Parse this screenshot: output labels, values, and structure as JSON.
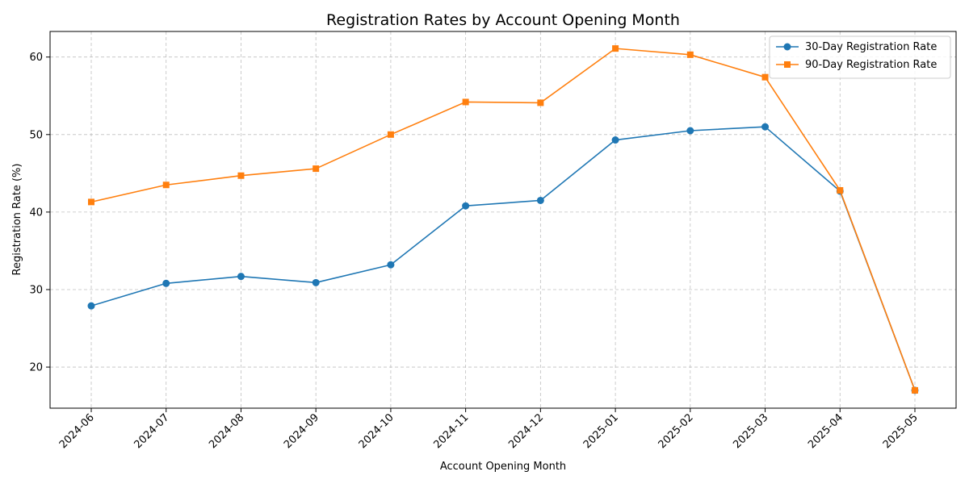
{
  "chart_data": {
    "type": "line",
    "title": "Registration Rates by Account Opening Month",
    "xlabel": "Account Opening Month",
    "ylabel": "Registration Rate (%)",
    "categories": [
      "2024-06",
      "2024-07",
      "2024-08",
      "2024-09",
      "2024-10",
      "2024-11",
      "2024-12",
      "2025-01",
      "2025-02",
      "2025-03",
      "2025-04",
      "2025-05"
    ],
    "yticks": [
      20,
      30,
      40,
      50,
      60
    ],
    "ylim": [
      14.7,
      63.3
    ],
    "grid": true,
    "legend_position": "top-right",
    "series": [
      {
        "name": "30-Day Registration Rate",
        "color": "#1f77b4",
        "marker": "circle",
        "values": [
          27.9,
          30.8,
          31.7,
          30.9,
          33.2,
          40.8,
          41.5,
          49.3,
          50.5,
          51.0,
          42.7,
          17.0
        ]
      },
      {
        "name": "90-Day Registration Rate",
        "color": "#ff7f0e",
        "marker": "square",
        "values": [
          41.3,
          43.5,
          44.7,
          45.6,
          50.0,
          54.2,
          54.1,
          61.1,
          60.3,
          57.4,
          42.8,
          17.0
        ]
      }
    ]
  }
}
